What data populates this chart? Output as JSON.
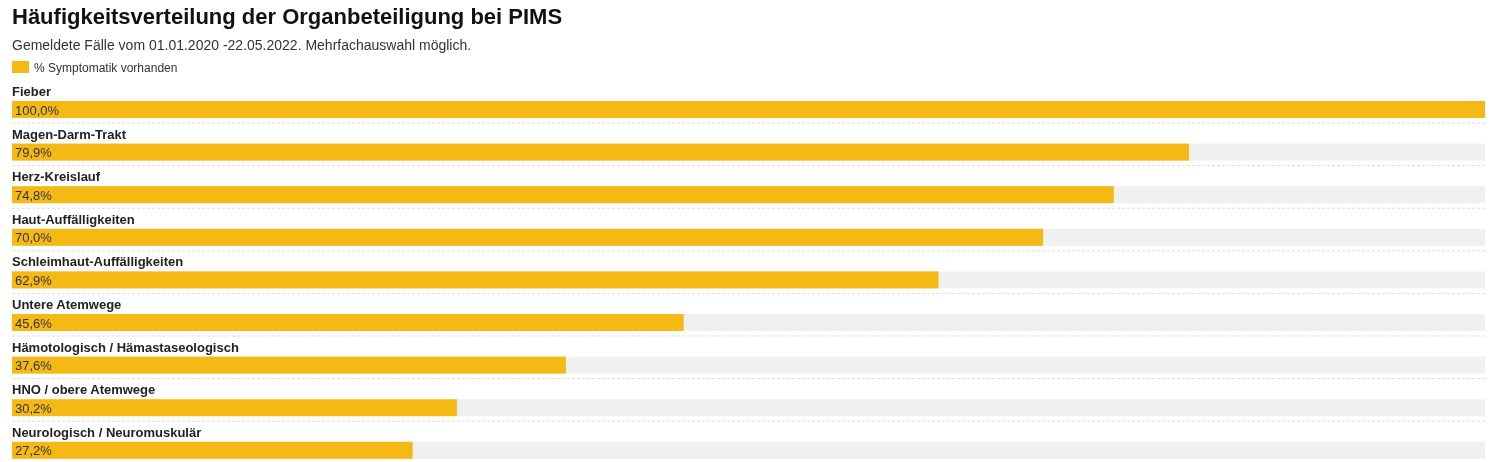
{
  "chart_data": {
    "type": "bar",
    "orientation": "horizontal",
    "title": "Häufigkeitsverteilung der Organbeteiligung bei PIMS",
    "subtitle": "Gemeldete Fälle vom 01.01.2020 -22.05.2022. Mehrfachauswahl möglich.",
    "categories": [
      "Fieber",
      "Magen-Darm-Trakt",
      "Herz-Kreislauf",
      "Haut-Auffälligkeiten",
      "Schleimhaut-Auffälligkeiten",
      "Untere Atemwege",
      "Hämotologisch / Hämastaseologisch",
      "HNO / obere Atemwege",
      "Neurologisch / Neuromuskulär"
    ],
    "series": [
      {
        "name": "% Symptomatik vorhanden",
        "color": "#f5b914",
        "values": [
          100.0,
          79.9,
          74.8,
          70.0,
          62.9,
          45.6,
          37.6,
          30.2,
          27.2
        ],
        "value_labels": [
          "100,0%",
          "79,9%",
          "74,8%",
          "70,0%",
          "62,9%",
          "45,6%",
          "37,6%",
          "30,2%",
          "27,2%"
        ]
      }
    ],
    "xlim": [
      0,
      100
    ],
    "legend": "top left"
  }
}
